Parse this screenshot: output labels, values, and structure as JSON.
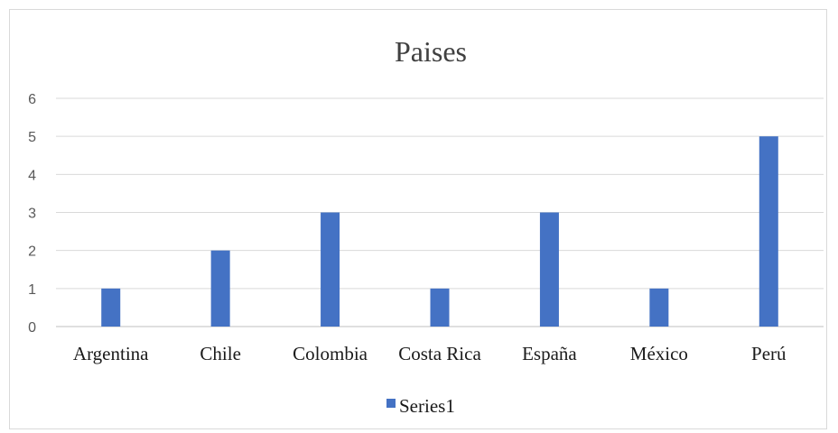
{
  "chart_data": {
    "type": "bar",
    "title": "Paises",
    "categories": [
      "Argentina",
      "Chile",
      "Colombia",
      "Costa Rica",
      "España",
      "México",
      "Perú"
    ],
    "series": [
      {
        "name": "Series1",
        "values": [
          1,
          2,
          3,
          1,
          3,
          1,
          5
        ],
        "color": "#4472c4"
      }
    ],
    "ylim": [
      0,
      6
    ],
    "yticks": [
      0,
      1,
      2,
      3,
      4,
      5,
      6
    ],
    "xlabel": "",
    "ylabel": "",
    "grid": true,
    "legend_position": "bottom"
  }
}
